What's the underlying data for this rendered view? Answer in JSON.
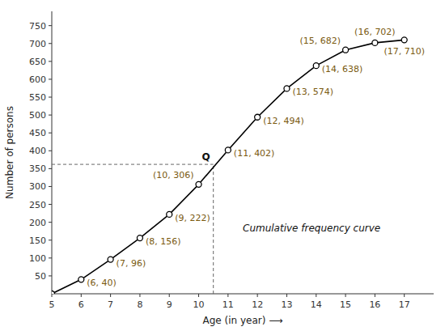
{
  "chart_data": {
    "type": "line",
    "x": [
      5,
      6,
      7,
      8,
      9,
      10,
      11,
      12,
      13,
      14,
      15,
      16,
      17
    ],
    "series": [
      {
        "values": [
          0,
          40,
          96,
          156,
          222,
          306,
          402,
          494,
          574,
          638,
          682,
          702,
          710
        ],
        "value_labels": [
          null,
          "(6, 40)",
          "(7, 96)",
          "(8, 156)",
          "(9, 222)",
          "(10, 306)",
          "(11, 402)",
          "(12, 494)",
          "(13, 574)",
          "(14, 638)",
          "(15, 682)",
          "(16, 702)",
          "(17, 710)"
        ],
        "color": "#000000",
        "marker": "circle"
      }
    ],
    "data_labels": true,
    "xlabel": "Age (in year) ⟶",
    "ylabel": "Number of persons",
    "xlim": [
      5,
      18
    ],
    "ylim": [
      0,
      790
    ],
    "xticks": [
      5,
      6,
      7,
      8,
      9,
      10,
      11,
      12,
      13,
      14,
      15,
      16,
      17
    ],
    "yticks": [
      50,
      100,
      150,
      200,
      250,
      300,
      350,
      400,
      450,
      500,
      550,
      600,
      650,
      700,
      750
    ],
    "grid": false,
    "annotations": [
      {
        "text": "Q",
        "x": 10.5,
        "y": 362
      },
      {
        "text": "Cumulative frequency curve"
      }
    ]
  }
}
